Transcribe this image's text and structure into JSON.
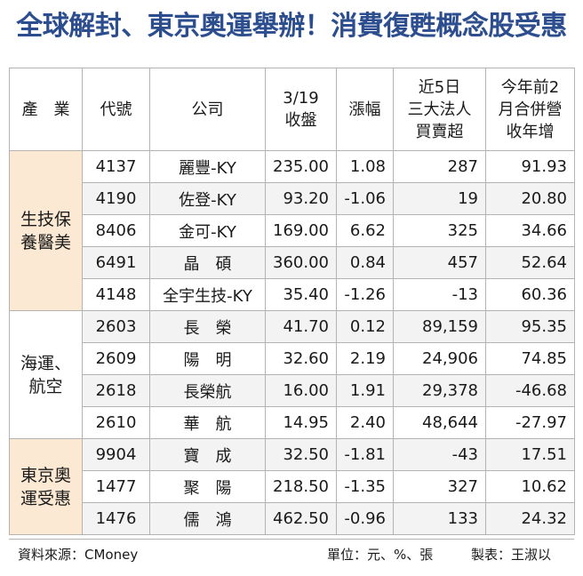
{
  "title": "全球解封、東京奧運舉辦！消費復甦概念股受惠",
  "headers": {
    "industry": "產　業",
    "code": "代號",
    "company": "公司",
    "close": [
      "3/19",
      "收盤"
    ],
    "change": "漲幅",
    "institutional": [
      "近5日",
      "三大法人",
      "買賣超"
    ],
    "revenue": [
      "今年前2",
      "月合併營",
      "收年增"
    ]
  },
  "groups": [
    {
      "industry": [
        "生技保",
        "養醫美"
      ],
      "rows": [
        {
          "code": "4137",
          "company": "麗豐-KY",
          "close": "235.00",
          "change": "1.08",
          "institutional": "287",
          "revenue": "91.93"
        },
        {
          "code": "4190",
          "company": "佐登-KY",
          "close": "93.20",
          "change": "-1.06",
          "institutional": "19",
          "revenue": "20.80"
        },
        {
          "code": "8406",
          "company": "金可-KY",
          "close": "169.00",
          "change": "6.62",
          "institutional": "325",
          "revenue": "34.66"
        },
        {
          "code": "6491",
          "company": "晶　碩",
          "close": "360.00",
          "change": "0.84",
          "institutional": "457",
          "revenue": "52.64"
        },
        {
          "code": "4148",
          "company": "全宇生技-KY",
          "close": "35.40",
          "change": "-1.26",
          "institutional": "-13",
          "revenue": "60.36"
        }
      ]
    },
    {
      "industry": [
        "海運、",
        "航空"
      ],
      "rows": [
        {
          "code": "2603",
          "company": "長　榮",
          "close": "41.70",
          "change": "0.12",
          "institutional": "89,159",
          "revenue": "95.35"
        },
        {
          "code": "2609",
          "company": "陽　明",
          "close": "32.60",
          "change": "2.19",
          "institutional": "24,906",
          "revenue": "74.85"
        },
        {
          "code": "2618",
          "company": "長榮航",
          "close": "16.00",
          "change": "1.91",
          "institutional": "29,378",
          "revenue": "-46.68"
        },
        {
          "code": "2610",
          "company": "華　航",
          "close": "14.95",
          "change": "2.40",
          "institutional": "48,644",
          "revenue": "-27.97"
        }
      ]
    },
    {
      "industry": [
        "東京奧",
        "運受惠"
      ],
      "rows": [
        {
          "code": "9904",
          "company": "寶　成",
          "close": "32.50",
          "change": "-1.81",
          "institutional": "-43",
          "revenue": "17.51"
        },
        {
          "code": "1477",
          "company": "聚　陽",
          "close": "218.50",
          "change": "-1.35",
          "institutional": "327",
          "revenue": "10.62"
        },
        {
          "code": "1476",
          "company": "儒　鴻",
          "close": "462.50",
          "change": "-0.96",
          "institutional": "133",
          "revenue": "24.32"
        }
      ]
    }
  ],
  "footer": {
    "source": "資料來源：CMoney",
    "unit": "單位：元、%、張",
    "maker": "製表：王淑以"
  }
}
